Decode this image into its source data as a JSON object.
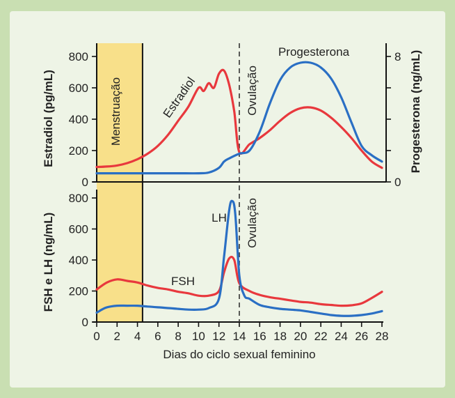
{
  "chart_data": [
    {
      "type": "line",
      "title": "",
      "xlabel": "Dias do ciclo sexual feminino",
      "x_ticks": [
        0,
        2,
        4,
        6,
        8,
        10,
        12,
        14,
        16,
        18,
        20,
        22,
        24,
        26,
        28
      ],
      "xlim": [
        0,
        28
      ],
      "ylabel": "Estradiol (pg/mL)",
      "ylim": [
        0,
        800
      ],
      "y_ticks": [
        0,
        200,
        400,
        600,
        800
      ],
      "y2label": "Progesterona (ng/mL)",
      "y2lim": [
        0,
        8
      ],
      "y2_ticks": [
        0,
        8
      ],
      "series": [
        {
          "name": "Estradiol",
          "color": "#e8383d",
          "axis": "left",
          "x": [
            0,
            1,
            2,
            3,
            4,
            5,
            6,
            7,
            8,
            9,
            10,
            10.5,
            11,
            11.5,
            12,
            12.5,
            13,
            13.5,
            14,
            15,
            16,
            17,
            18,
            19,
            20,
            21,
            22,
            23,
            24,
            25,
            26,
            27,
            28
          ],
          "values": [
            95,
            98,
            105,
            120,
            145,
            180,
            230,
            300,
            390,
            480,
            600,
            580,
            630,
            600,
            690,
            710,
            620,
            450,
            190,
            240,
            280,
            330,
            390,
            440,
            470,
            475,
            455,
            410,
            350,
            280,
            200,
            130,
            90
          ]
        },
        {
          "name": "Progesterona",
          "color": "#2a6fc4",
          "axis": "right",
          "x": [
            0,
            2,
            4,
            6,
            8,
            10,
            11,
            12,
            12.5,
            13,
            14,
            15,
            16,
            17,
            18,
            19,
            20,
            21,
            22,
            23,
            24,
            25,
            26,
            27,
            28
          ],
          "values": [
            0.55,
            0.55,
            0.55,
            0.55,
            0.55,
            0.55,
            0.6,
            0.9,
            1.3,
            1.5,
            1.8,
            2.0,
            3.2,
            5.0,
            6.5,
            7.3,
            7.6,
            7.6,
            7.3,
            6.6,
            5.4,
            3.8,
            2.3,
            1.7,
            1.3
          ]
        }
      ],
      "annotations": [
        "Menstruação",
        "Ovulação"
      ],
      "shaded_range": [
        0,
        4.5
      ],
      "ovulation_day": 14
    },
    {
      "type": "line",
      "title": "",
      "xlabel": "Dias do ciclo sexual feminino",
      "x_ticks": [
        0,
        2,
        4,
        6,
        8,
        10,
        12,
        14,
        16,
        18,
        20,
        22,
        24,
        26,
        28
      ],
      "xlim": [
        0,
        28
      ],
      "ylabel": "FSH e LH (ng/mL)",
      "ylim": [
        0,
        800
      ],
      "y_ticks": [
        0,
        200,
        400,
        600,
        800
      ],
      "series": [
        {
          "name": "FSH",
          "color": "#e8383d",
          "x": [
            0,
            1,
            2,
            3,
            4,
            5,
            6,
            7,
            8,
            9,
            10,
            11,
            12,
            12.5,
            13,
            13.5,
            14,
            15,
            16,
            17,
            18,
            19,
            20,
            21,
            22,
            23,
            24,
            25,
            26,
            27,
            28
          ],
          "values": [
            210,
            255,
            275,
            265,
            255,
            235,
            220,
            210,
            195,
            185,
            170,
            170,
            200,
            320,
            410,
            400,
            250,
            200,
            175,
            160,
            150,
            140,
            130,
            125,
            115,
            110,
            105,
            108,
            120,
            155,
            195
          ]
        },
        {
          "name": "LH",
          "color": "#2a6fc4",
          "x": [
            0,
            0.5,
            1,
            2,
            3,
            4,
            5,
            6,
            7,
            8,
            9,
            10,
            11,
            12,
            12.5,
            13,
            13.3,
            13.6,
            14,
            14.5,
            15,
            16,
            17,
            18,
            19,
            20,
            21,
            22,
            23,
            24,
            25,
            26,
            27,
            28
          ],
          "values": [
            60,
            80,
            95,
            105,
            105,
            105,
            100,
            95,
            90,
            85,
            80,
            80,
            90,
            150,
            420,
            720,
            780,
            700,
            300,
            170,
            150,
            110,
            95,
            85,
            80,
            75,
            65,
            55,
            45,
            40,
            40,
            45,
            55,
            70
          ]
        }
      ],
      "annotations": [
        "Ovulação"
      ]
    }
  ],
  "labels": {
    "menstruation": "Menstruação",
    "ovulation_top": "Ovulação",
    "ovulation_bottom": "Ovulação",
    "estradiol": "Estradiol",
    "progesterone": "Progesterona",
    "lh": "LH",
    "fsh": "FSH",
    "y_left_top": "Estradiol (pg/mL)",
    "y_right_top": "Progesterona (ng/mL)",
    "y_left_bottom": "FSH e LH (ng/mL)",
    "x_axis": "Dias do ciclo sexual feminino"
  },
  "colors": {
    "red": "#e8383d",
    "blue": "#2a6fc4",
    "menstruation_fill": "#f8e08a",
    "background": "#c9dfb2",
    "panel": "#eef4e6"
  }
}
